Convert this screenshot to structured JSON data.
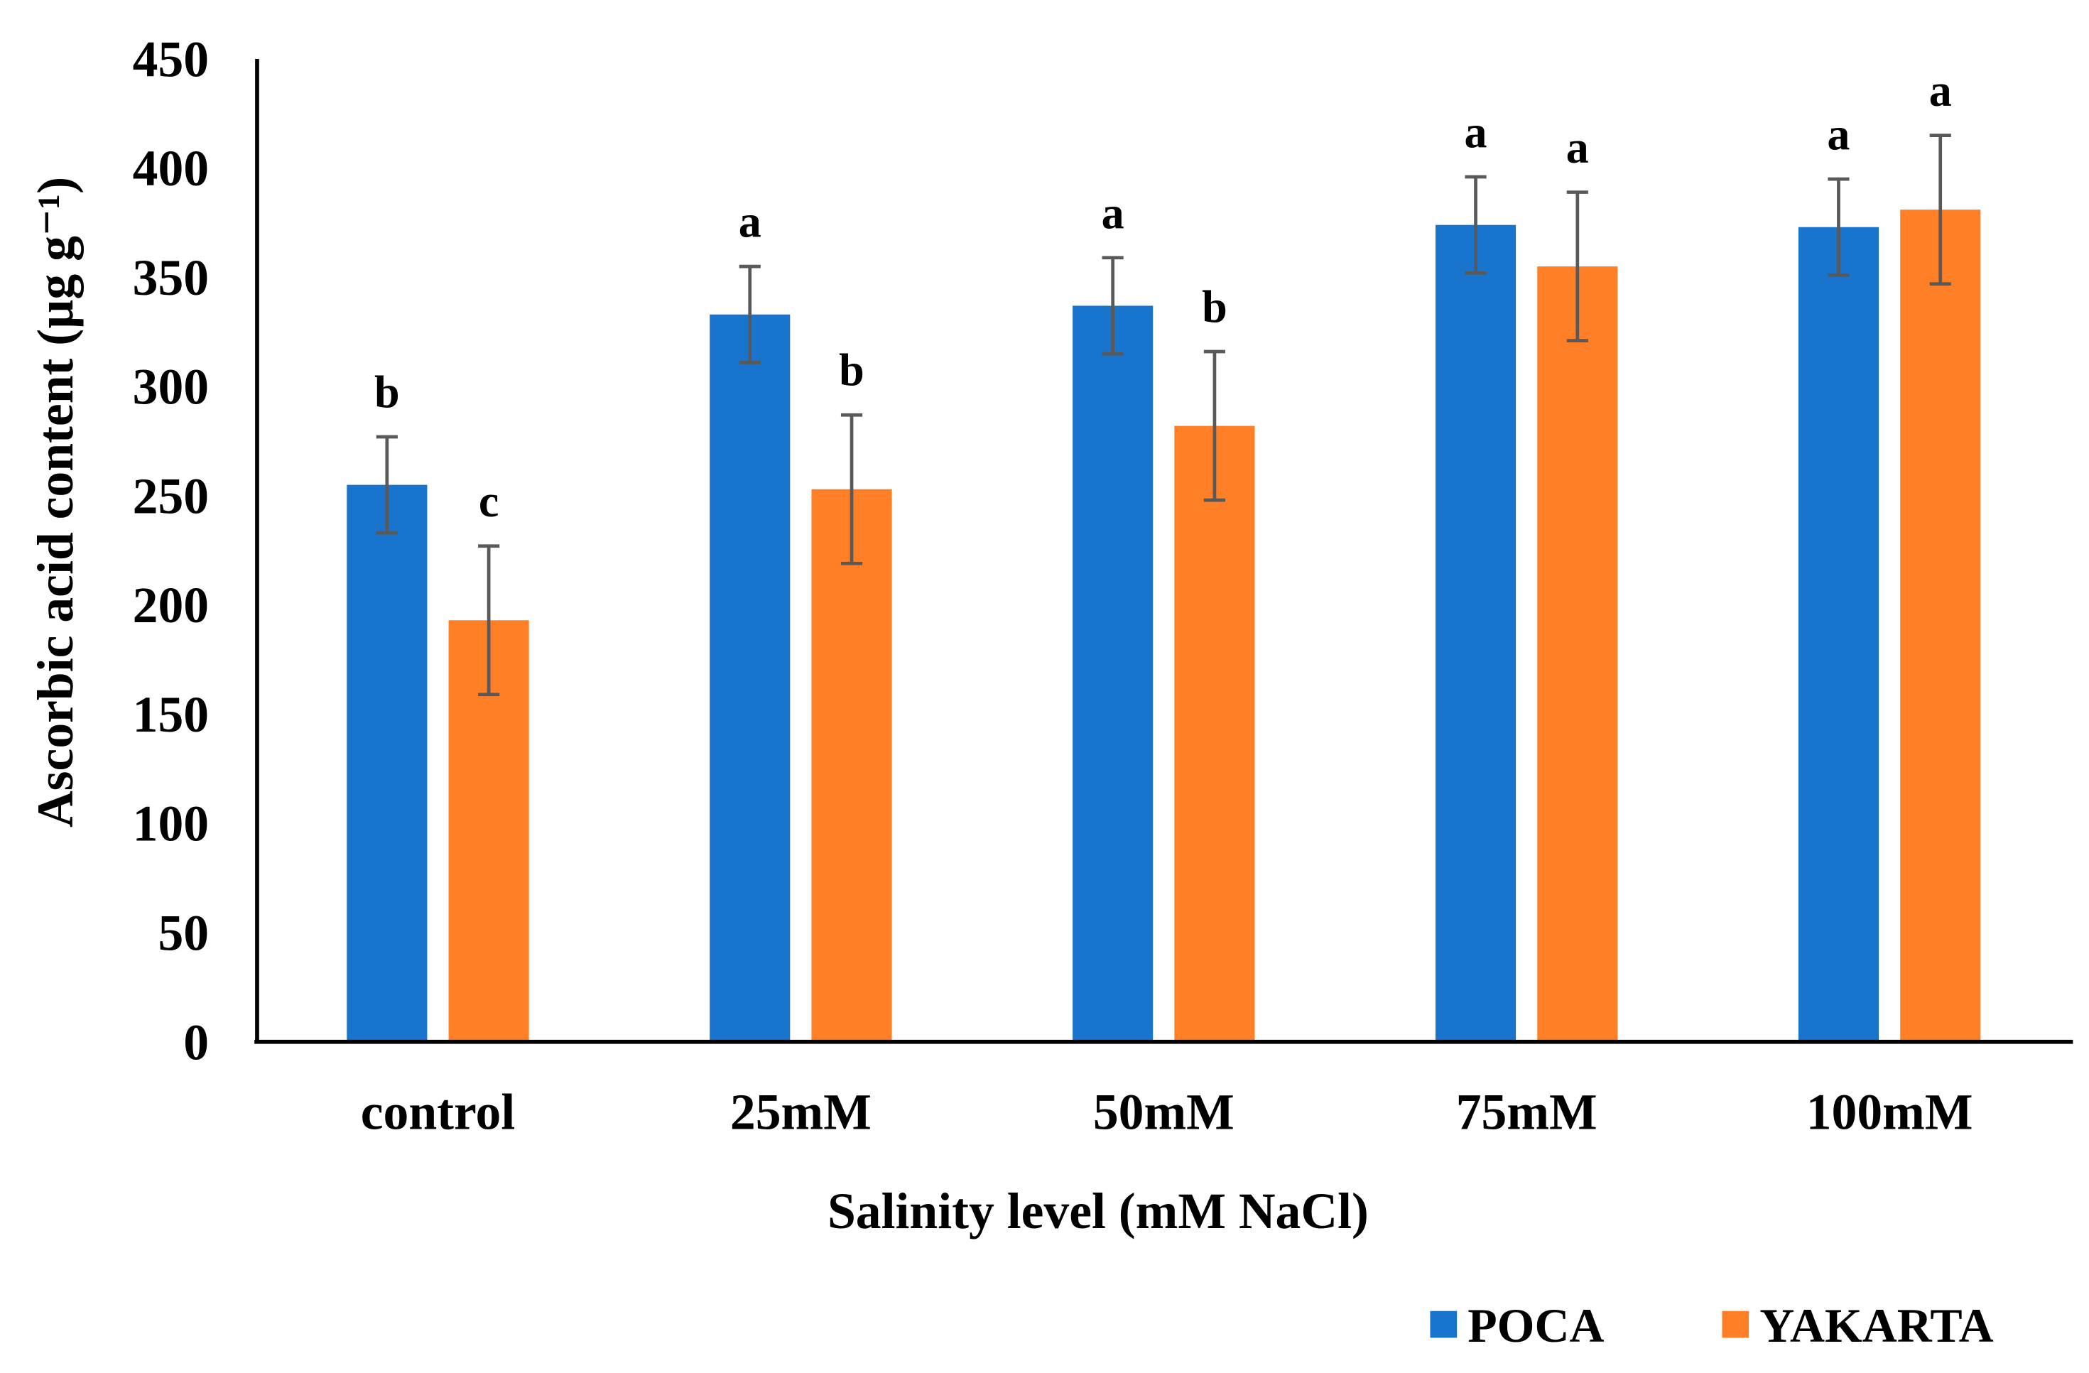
{
  "chart_data": {
    "type": "bar",
    "title": "",
    "xlabel": "Salinity level (mM NaCl)",
    "ylabel": "Ascorbic acid content (µg g⁻¹)",
    "ylim": [
      0,
      450
    ],
    "yticks": [
      "0",
      "50",
      "100",
      "150",
      "200",
      "250",
      "300",
      "350",
      "400",
      "450"
    ],
    "grid": false,
    "legend_position": "bottom-right",
    "categories": [
      "control",
      "25mM",
      "50mM",
      "75mM",
      "100mM"
    ],
    "series": [
      {
        "name": "POCA",
        "color": "#1874CD",
        "values": [
          255,
          333,
          337,
          374,
          373
        ],
        "errors": [
          22,
          22,
          22,
          22,
          22
        ],
        "letters": [
          "b",
          "a",
          "a",
          "a",
          "a"
        ]
      },
      {
        "name": "YAKARTA",
        "color": "#FF7F27",
        "values": [
          193,
          253,
          282,
          355,
          381
        ],
        "errors": [
          34,
          34,
          34,
          34,
          34
        ],
        "letters": [
          "c",
          "b",
          "b",
          "a",
          "a"
        ]
      }
    ]
  }
}
